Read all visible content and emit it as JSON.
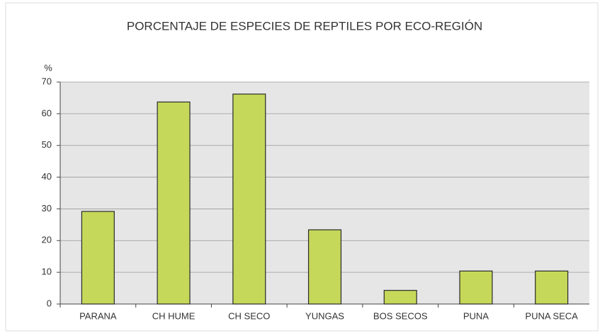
{
  "chart_data": {
    "type": "bar",
    "title": "PORCENTAJE DE ESPECIES DE REPTILES POR ECO-REGIÓN",
    "y_label": "%",
    "categories": [
      "PARANA",
      "CH HUME",
      "CH SECO",
      "YUNGAS",
      "BOS SECOS",
      "PUNA",
      "PUNA SECA"
    ],
    "values": [
      29.2,
      63.7,
      66.2,
      23.4,
      4.3,
      10.4,
      10.4
    ],
    "color": "#c5d85a",
    "ylim": [
      0,
      70
    ],
    "yticks": [
      0,
      10,
      20,
      30,
      40,
      50,
      60,
      70
    ],
    "grid": true
  }
}
